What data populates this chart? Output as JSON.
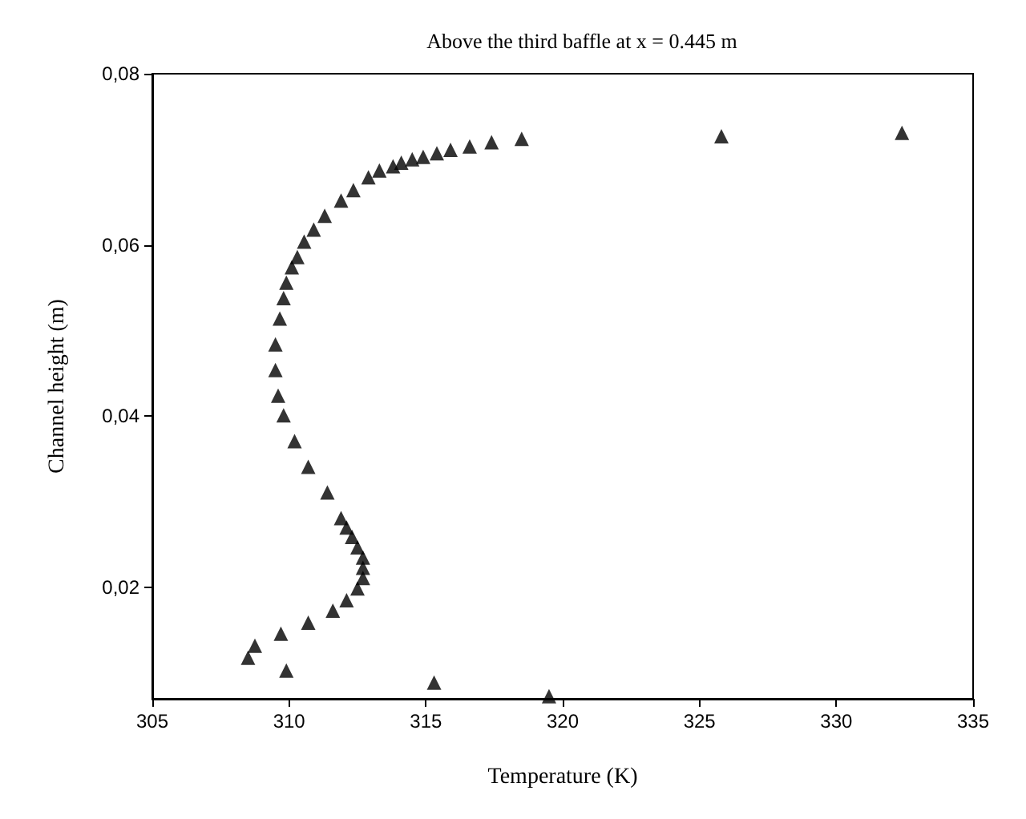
{
  "chart_data": {
    "type": "scatter",
    "title": "Above the third baffle at x = 0.445 m",
    "xlabel": "Temperature (K)",
    "ylabel": "Channel height (m)",
    "x": [
      319.5,
      315.3,
      309.9,
      308.5,
      308.75,
      309.7,
      310.7,
      311.6,
      312.1,
      312.5,
      312.7,
      312.7,
      312.7,
      312.5,
      312.3,
      312.1,
      311.9,
      311.4,
      310.7,
      310.2,
      309.8,
      309.6,
      309.5,
      309.5,
      309.66,
      309.8,
      309.9,
      310.1,
      310.3,
      310.55,
      310.9,
      311.3,
      311.9,
      312.35,
      312.9,
      313.3,
      313.8,
      314.1,
      314.5,
      314.9,
      315.4,
      315.9,
      316.6,
      317.4,
      318.5,
      325.8,
      332.4
    ],
    "series": [
      {
        "color": "#000000",
        "values": [
          0.0073,
          0.0089,
          0.0103,
          0.0118,
          0.0132,
          0.0146,
          0.0159,
          0.0173,
          0.0185,
          0.0199,
          0.0211,
          0.0223,
          0.0235,
          0.0247,
          0.0259,
          0.027,
          0.0281,
          0.0311,
          0.0341,
          0.0371,
          0.0401,
          0.0424,
          0.0454,
          0.0484,
          0.0514,
          0.0538,
          0.0556,
          0.0574,
          0.0586,
          0.0604,
          0.0618,
          0.0634,
          0.0652,
          0.0664,
          0.0679,
          0.0687,
          0.0692,
          0.0696,
          0.07,
          0.0703,
          0.0707,
          0.0711,
          0.0715,
          0.072,
          0.0724,
          0.0727,
          0.0731
        ]
      }
    ],
    "marker": "triangle",
    "xlim": [
      305,
      335
    ],
    "xticks": [
      305,
      310,
      315,
      320,
      325,
      330,
      335
    ],
    "ylim": [
      0.007,
      0.08
    ],
    "yticks": [
      {
        "value": 0.02,
        "label": "0,02"
      },
      {
        "value": 0.04,
        "label": "0,04"
      },
      {
        "value": 0.06,
        "label": "0,06"
      },
      {
        "value": 0.08,
        "label": "0,08"
      }
    ],
    "grid": false
  }
}
